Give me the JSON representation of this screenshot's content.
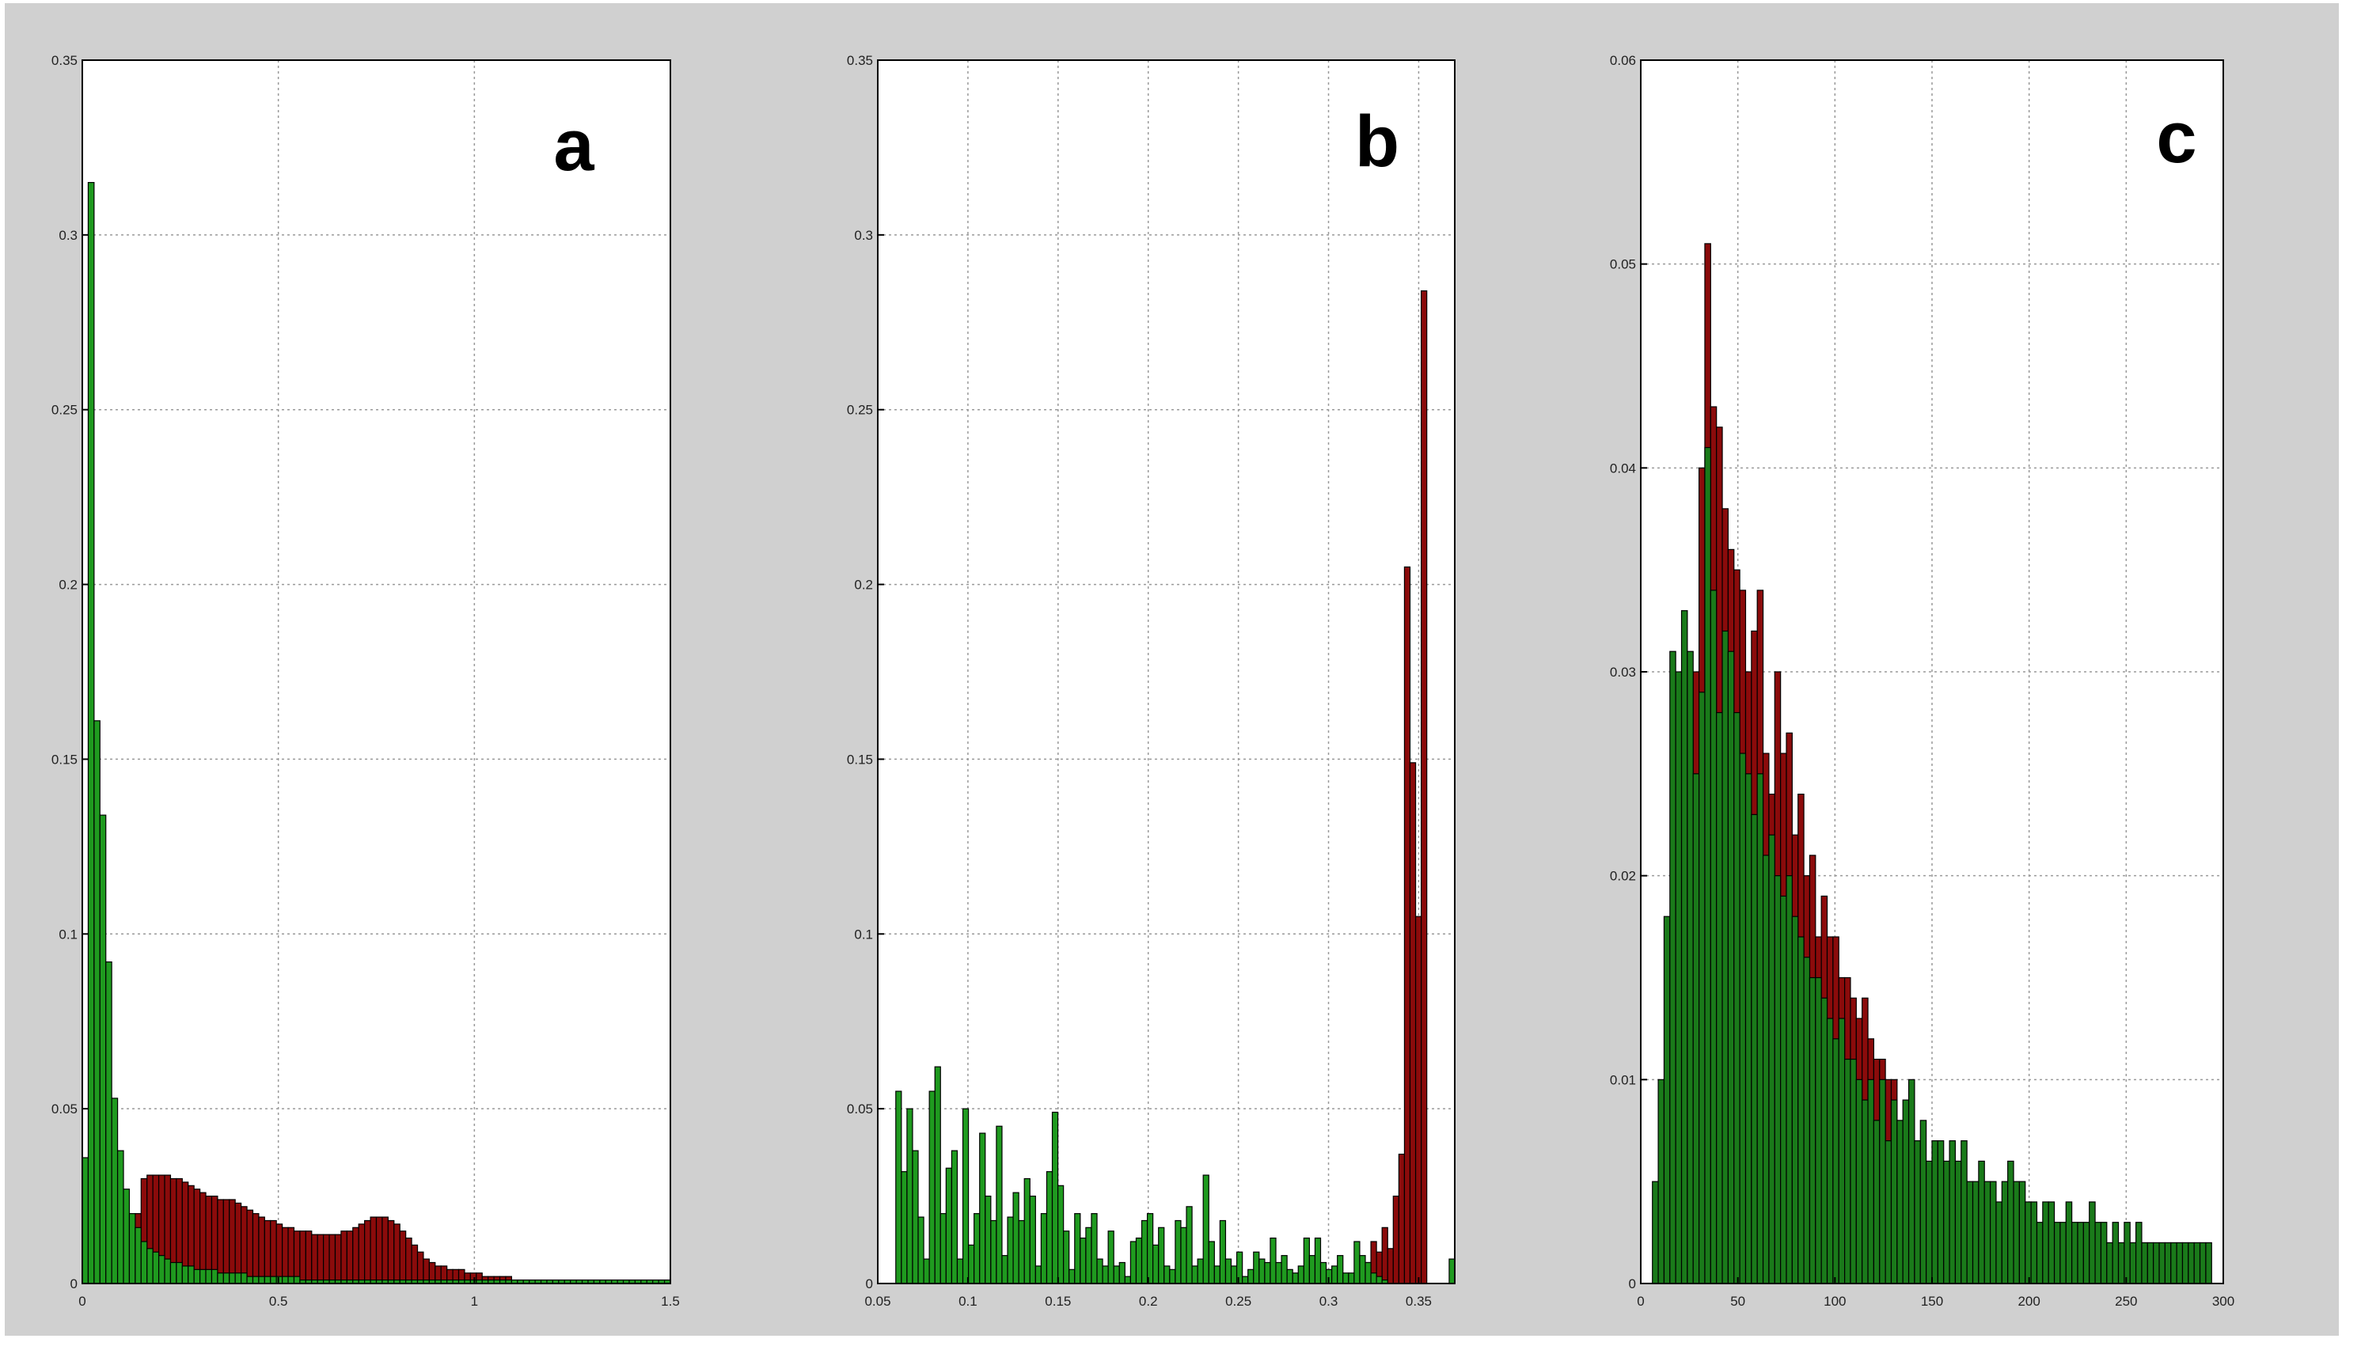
{
  "figure": {
    "background": "#d0d0d0",
    "plot_background": "#ffffff",
    "grid_color": "#9a9a9a"
  },
  "chart_data": [
    {
      "type": "bar",
      "panel_label": "a",
      "grid": true,
      "xlim": [
        0,
        1.5
      ],
      "ylim": [
        0,
        0.35
      ],
      "xticks": [
        0,
        0.5,
        1,
        1.5
      ],
      "yticks": [
        0,
        0.05,
        0.1,
        0.15,
        0.2,
        0.25,
        0.3,
        0.35
      ],
      "xtick_labels": [
        "0",
        "0.5",
        "1",
        "1.5"
      ],
      "ytick_labels": [
        "0",
        "0.05",
        "0.1",
        "0.15",
        "0.2",
        "0.25",
        "0.3",
        "0.35"
      ],
      "bin_start": 0,
      "bin_width": 0.015,
      "series": [
        {
          "color": "#8b0b0b",
          "values": [
            0,
            0,
            0,
            0,
            0,
            0,
            0,
            0,
            0.008,
            0.02,
            0.03,
            0.031,
            0.031,
            0.031,
            0.031,
            0.03,
            0.03,
            0.029,
            0.028,
            0.027,
            0.026,
            0.025,
            0.025,
            0.024,
            0.024,
            0.024,
            0.023,
            0.022,
            0.021,
            0.02,
            0.019,
            0.018,
            0.018,
            0.017,
            0.016,
            0.016,
            0.015,
            0.015,
            0.015,
            0.014,
            0.014,
            0.014,
            0.014,
            0.014,
            0.015,
            0.015,
            0.016,
            0.017,
            0.018,
            0.019,
            0.019,
            0.019,
            0.018,
            0.017,
            0.015,
            0.013,
            0.011,
            0.009,
            0.007,
            0.006,
            0.005,
            0.005,
            0.004,
            0.004,
            0.004,
            0.003,
            0.003,
            0.003,
            0.002,
            0.002,
            0.002,
            0.002,
            0.002,
            0.001,
            0.001,
            0.001,
            0.001,
            0.001,
            0.001,
            0.001,
            0.001,
            0.001,
            0.001,
            0.001,
            0.001,
            0.001,
            0.001,
            0.001,
            0.001,
            0.001,
            0.001,
            0.001,
            0.001,
            0.001,
            0.001,
            0.001,
            0.001,
            0.001,
            0.001,
            0.001
          ]
        },
        {
          "color": "#1f9a1f",
          "values": [
            0.036,
            0.315,
            0.161,
            0.134,
            0.092,
            0.053,
            0.038,
            0.027,
            0.02,
            0.016,
            0.012,
            0.01,
            0.009,
            0.008,
            0.007,
            0.006,
            0.006,
            0.005,
            0.005,
            0.004,
            0.004,
            0.004,
            0.004,
            0.003,
            0.003,
            0.003,
            0.003,
            0.003,
            0.002,
            0.002,
            0.002,
            0.002,
            0.002,
            0.002,
            0.002,
            0.002,
            0.002,
            0.001,
            0.001,
            0.001,
            0.001,
            0.001,
            0.001,
            0.001,
            0.001,
            0.001,
            0.001,
            0.001,
            0.001,
            0.001,
            0.001,
            0.001,
            0.001,
            0.001,
            0.001,
            0.001,
            0.001,
            0.001,
            0.001,
            0.001,
            0.001,
            0.001,
            0.001,
            0.001,
            0.001,
            0.001,
            0.001,
            0.001,
            0.001,
            0.001,
            0.001,
            0.001,
            0.001,
            0.001,
            0.001,
            0.001,
            0.001,
            0.001,
            0.001,
            0.001,
            0.001,
            0.001,
            0.001,
            0.001,
            0.001,
            0.001,
            0.001,
            0.001,
            0.001,
            0.001,
            0.001,
            0.001,
            0.001,
            0.001,
            0.001,
            0.001,
            0.001,
            0.001,
            0.001,
            0.001
          ]
        }
      ]
    },
    {
      "type": "bar",
      "panel_label": "b",
      "grid": true,
      "xlim": [
        0.05,
        0.37
      ],
      "ylim": [
        0,
        0.35
      ],
      "xticks": [
        0.05,
        0.1,
        0.15,
        0.2,
        0.25,
        0.3,
        0.35
      ],
      "yticks": [
        0,
        0.05,
        0.1,
        0.15,
        0.2,
        0.25,
        0.3,
        0.35
      ],
      "xtick_labels": [
        "0.05",
        "0.1",
        "0.15",
        "0.2",
        "0.25",
        "0.3",
        "0.35"
      ],
      "ytick_labels": [
        "0",
        "0.05",
        "0.1",
        "0.15",
        "0.2",
        "0.25",
        "0.3",
        "0.35"
      ],
      "bin_start": 0.06,
      "bin_width": 0.0031,
      "series": [
        {
          "color": "#8b0b0b",
          "values": [
            0,
            0,
            0,
            0,
            0,
            0,
            0,
            0,
            0,
            0,
            0,
            0,
            0,
            0,
            0,
            0,
            0,
            0,
            0,
            0,
            0,
            0,
            0,
            0,
            0,
            0,
            0,
            0,
            0,
            0,
            0,
            0,
            0,
            0,
            0,
            0,
            0,
            0,
            0,
            0,
            0,
            0,
            0,
            0,
            0,
            0,
            0,
            0,
            0,
            0,
            0,
            0,
            0,
            0,
            0,
            0,
            0,
            0,
            0,
            0,
            0,
            0,
            0,
            0,
            0,
            0,
            0,
            0,
            0,
            0,
            0,
            0,
            0,
            0,
            0,
            0,
            0,
            0,
            0,
            0,
            0,
            0,
            0,
            0.003,
            0.006,
            0.012,
            0.009,
            0.016,
            0.01,
            0.025,
            0.037,
            0.205,
            0.149,
            0.105,
            0.284,
            0,
            0,
            0,
            0,
            0
          ]
        },
        {
          "color": "#1f9a1f",
          "values": [
            0.055,
            0.032,
            0.05,
            0.038,
            0.019,
            0.007,
            0.055,
            0.062,
            0.02,
            0.033,
            0.038,
            0.007,
            0.05,
            0.011,
            0.02,
            0.043,
            0.025,
            0.018,
            0.045,
            0.008,
            0.019,
            0.026,
            0.018,
            0.03,
            0.025,
            0.005,
            0.02,
            0.032,
            0.049,
            0.028,
            0.015,
            0.004,
            0.02,
            0.013,
            0.016,
            0.02,
            0.007,
            0.005,
            0.015,
            0.005,
            0.006,
            0.002,
            0.012,
            0.013,
            0.018,
            0.02,
            0.011,
            0.016,
            0.005,
            0.004,
            0.018,
            0.016,
            0.022,
            0.005,
            0.007,
            0.031,
            0.012,
            0.005,
            0.018,
            0.007,
            0.005,
            0.009,
            0.002,
            0.004,
            0.009,
            0.007,
            0.006,
            0.013,
            0.006,
            0.008,
            0.004,
            0.003,
            0.005,
            0.013,
            0.008,
            0.013,
            0.006,
            0.004,
            0.005,
            0.008,
            0.003,
            0.003,
            0.012,
            0.008,
            0.006,
            0.003,
            0.002,
            0.001,
            0,
            0,
            0,
            0,
            0,
            0,
            0,
            0,
            0,
            0,
            0,
            0.007
          ]
        }
      ]
    },
    {
      "type": "bar",
      "panel_label": "c",
      "grid": true,
      "xlim": [
        0,
        300
      ],
      "ylim": [
        0,
        0.06
      ],
      "xticks": [
        0,
        50,
        100,
        150,
        200,
        250,
        300
      ],
      "yticks": [
        0,
        0.01,
        0.02,
        0.03,
        0.04,
        0.05,
        0.06
      ],
      "xtick_labels": [
        "0",
        "50",
        "100",
        "150",
        "200",
        "250",
        "300"
      ],
      "ytick_labels": [
        "0",
        "0.01",
        "0.02",
        "0.03",
        "0.04",
        "0.05",
        "0.06"
      ],
      "bin_start": 6,
      "bin_width": 3,
      "series": [
        {
          "color": "#8b0b0b",
          "values": [
            0,
            0,
            0,
            0,
            0,
            0,
            0.02,
            0.03,
            0.04,
            0.051,
            0.043,
            0.042,
            0.038,
            0.036,
            0.035,
            0.034,
            0.03,
            0.032,
            0.034,
            0.026,
            0.024,
            0.03,
            0.026,
            0.027,
            0.022,
            0.024,
            0.02,
            0.021,
            0.017,
            0.019,
            0.017,
            0.017,
            0.015,
            0.015,
            0.014,
            0.013,
            0.014,
            0.012,
            0.011,
            0.011,
            0.01,
            0.01,
            0,
            0,
            0,
            0,
            0,
            0,
            0,
            0,
            0,
            0,
            0,
            0,
            0,
            0,
            0,
            0,
            0,
            0,
            0,
            0,
            0,
            0,
            0,
            0,
            0,
            0,
            0,
            0,
            0,
            0,
            0,
            0,
            0,
            0,
            0,
            0,
            0,
            0,
            0,
            0,
            0,
            0,
            0,
            0,
            0,
            0,
            0,
            0,
            0,
            0,
            0,
            0,
            0,
            0,
            0,
            0,
            0,
            0
          ]
        },
        {
          "color": "#1a7a1a",
          "values": [
            0.005,
            0.01,
            0.018,
            0.031,
            0.03,
            0.033,
            0.031,
            0.025,
            0.029,
            0.041,
            0.034,
            0.028,
            0.032,
            0.031,
            0.028,
            0.026,
            0.025,
            0.023,
            0.025,
            0.021,
            0.022,
            0.02,
            0.019,
            0.02,
            0.018,
            0.017,
            0.016,
            0.015,
            0.015,
            0.014,
            0.013,
            0.012,
            0.013,
            0.011,
            0.011,
            0.01,
            0.009,
            0.01,
            0.008,
            0.01,
            0.007,
            0.009,
            0.008,
            0.009,
            0.01,
            0.007,
            0.008,
            0.006,
            0.007,
            0.007,
            0.006,
            0.007,
            0.006,
            0.007,
            0.005,
            0.005,
            0.006,
            0.005,
            0.005,
            0.004,
            0.005,
            0.006,
            0.005,
            0.005,
            0.004,
            0.004,
            0.003,
            0.004,
            0.004,
            0.003,
            0.003,
            0.004,
            0.003,
            0.003,
            0.003,
            0.004,
            0.003,
            0.003,
            0.002,
            0.003,
            0.002,
            0.003,
            0.002,
            0.003,
            0.002,
            0.002,
            0.002,
            0.002,
            0.002,
            0.002,
            0.002,
            0.002,
            0.002,
            0.002,
            0.002,
            0.002
          ]
        }
      ]
    }
  ]
}
